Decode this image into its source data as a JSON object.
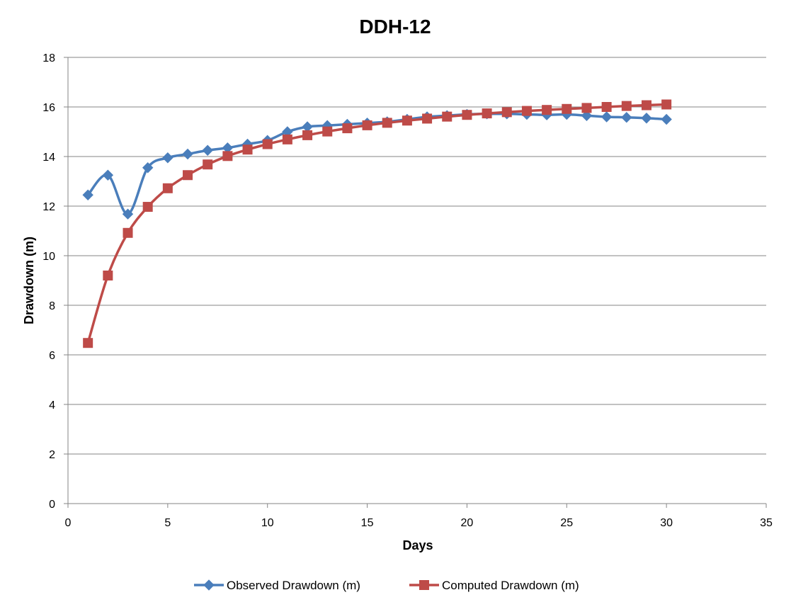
{
  "chart_data": {
    "type": "line",
    "title": "DDH-12",
    "xlabel": "Days",
    "ylabel": "Drawdown (m)",
    "xlim": [
      0,
      35
    ],
    "ylim": [
      0,
      18
    ],
    "xticks": [
      0,
      5,
      10,
      15,
      20,
      25,
      30,
      35
    ],
    "yticks": [
      0,
      2,
      4,
      6,
      8,
      10,
      12,
      14,
      16,
      18
    ],
    "grid": "horizontal",
    "legend": "bottom",
    "x": [
      1,
      2,
      3,
      4,
      5,
      6,
      7,
      8,
      9,
      10,
      11,
      12,
      13,
      14,
      15,
      16,
      17,
      18,
      19,
      20,
      21,
      22,
      23,
      24,
      25,
      26,
      27,
      28,
      29,
      30
    ],
    "series": [
      {
        "name": "Observed Drawdown (m)",
        "color": "#4A7EBB",
        "marker": "diamond",
        "values": [
          12.45,
          13.25,
          11.68,
          13.55,
          13.95,
          14.1,
          14.25,
          14.35,
          14.5,
          14.65,
          15.0,
          15.2,
          15.25,
          15.3,
          15.35,
          15.4,
          15.5,
          15.6,
          15.65,
          15.7,
          15.72,
          15.72,
          15.7,
          15.68,
          15.7,
          15.65,
          15.6,
          15.58,
          15.55,
          15.5
        ]
      },
      {
        "name": "Computed Drawdown (m)",
        "color": "#BE4B48",
        "marker": "square",
        "values": [
          6.48,
          9.2,
          10.92,
          11.97,
          12.72,
          13.25,
          13.68,
          14.02,
          14.28,
          14.5,
          14.69,
          14.86,
          15.01,
          15.14,
          15.26,
          15.36,
          15.45,
          15.53,
          15.61,
          15.68,
          15.74,
          15.79,
          15.84,
          15.88,
          15.92,
          15.96,
          16.0,
          16.04,
          16.07,
          16.1
        ]
      }
    ]
  }
}
